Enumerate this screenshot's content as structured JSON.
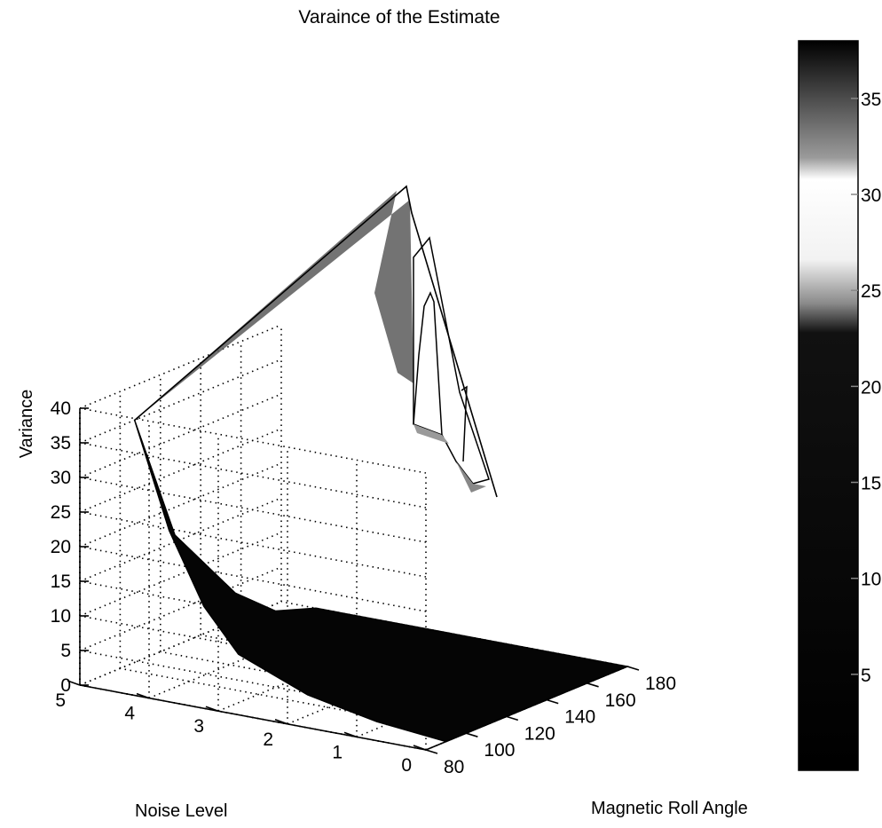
{
  "chart_data": {
    "type": "surface",
    "title": "Varaince of the Estimate",
    "xlabel": "Magnetic Roll Angle",
    "ylabel": "Noise Level",
    "zlabel": "Variance",
    "x_ticks": [
      80,
      100,
      120,
      140,
      160,
      180
    ],
    "y_ticks": [
      0,
      1,
      2,
      3,
      4,
      5
    ],
    "z_ticks": [
      0,
      5,
      10,
      15,
      20,
      25,
      30,
      35,
      40
    ],
    "xlim": [
      80,
      180
    ],
    "ylim": [
      0,
      5
    ],
    "zlim": [
      0,
      40
    ],
    "grid": true,
    "colorbar": {
      "ticks": [
        5,
        10,
        15,
        20,
        25,
        30,
        35
      ],
      "range": [
        0,
        38
      ],
      "colors": [
        "#000000",
        "#111111",
        "#8a8a8a",
        "#f2f2f2",
        "#ffffff",
        "#9a9a9a",
        "#000000"
      ],
      "stops": [
        0,
        0.6,
        0.64,
        0.7,
        0.81,
        0.84,
        1.0
      ]
    },
    "surface": {
      "peak": {
        "x": 90,
        "y": 4.5,
        "z": 38
      },
      "points": [
        {
          "x": 90,
          "y": 4.5,
          "z": 38
        },
        {
          "x": 90,
          "y": 4.0,
          "z": 23
        },
        {
          "x": 90,
          "y": 3.5,
          "z": 13
        },
        {
          "x": 90,
          "y": 3.0,
          "z": 7
        },
        {
          "x": 90,
          "y": 2.0,
          "z": 3
        },
        {
          "x": 90,
          "y": 1.0,
          "z": 1
        },
        {
          "x": 90,
          "y": 0.0,
          "z": 0
        },
        {
          "x": 110,
          "y": 4.5,
          "z": 19
        },
        {
          "x": 120,
          "y": 4.5,
          "z": 15
        },
        {
          "x": 140,
          "y": 4.5,
          "z": 7
        },
        {
          "x": 160,
          "y": 4.5,
          "z": 2
        },
        {
          "x": 180,
          "y": 4.5,
          "z": 0
        },
        {
          "x": 180,
          "y": 0.0,
          "z": 0
        }
      ]
    }
  }
}
